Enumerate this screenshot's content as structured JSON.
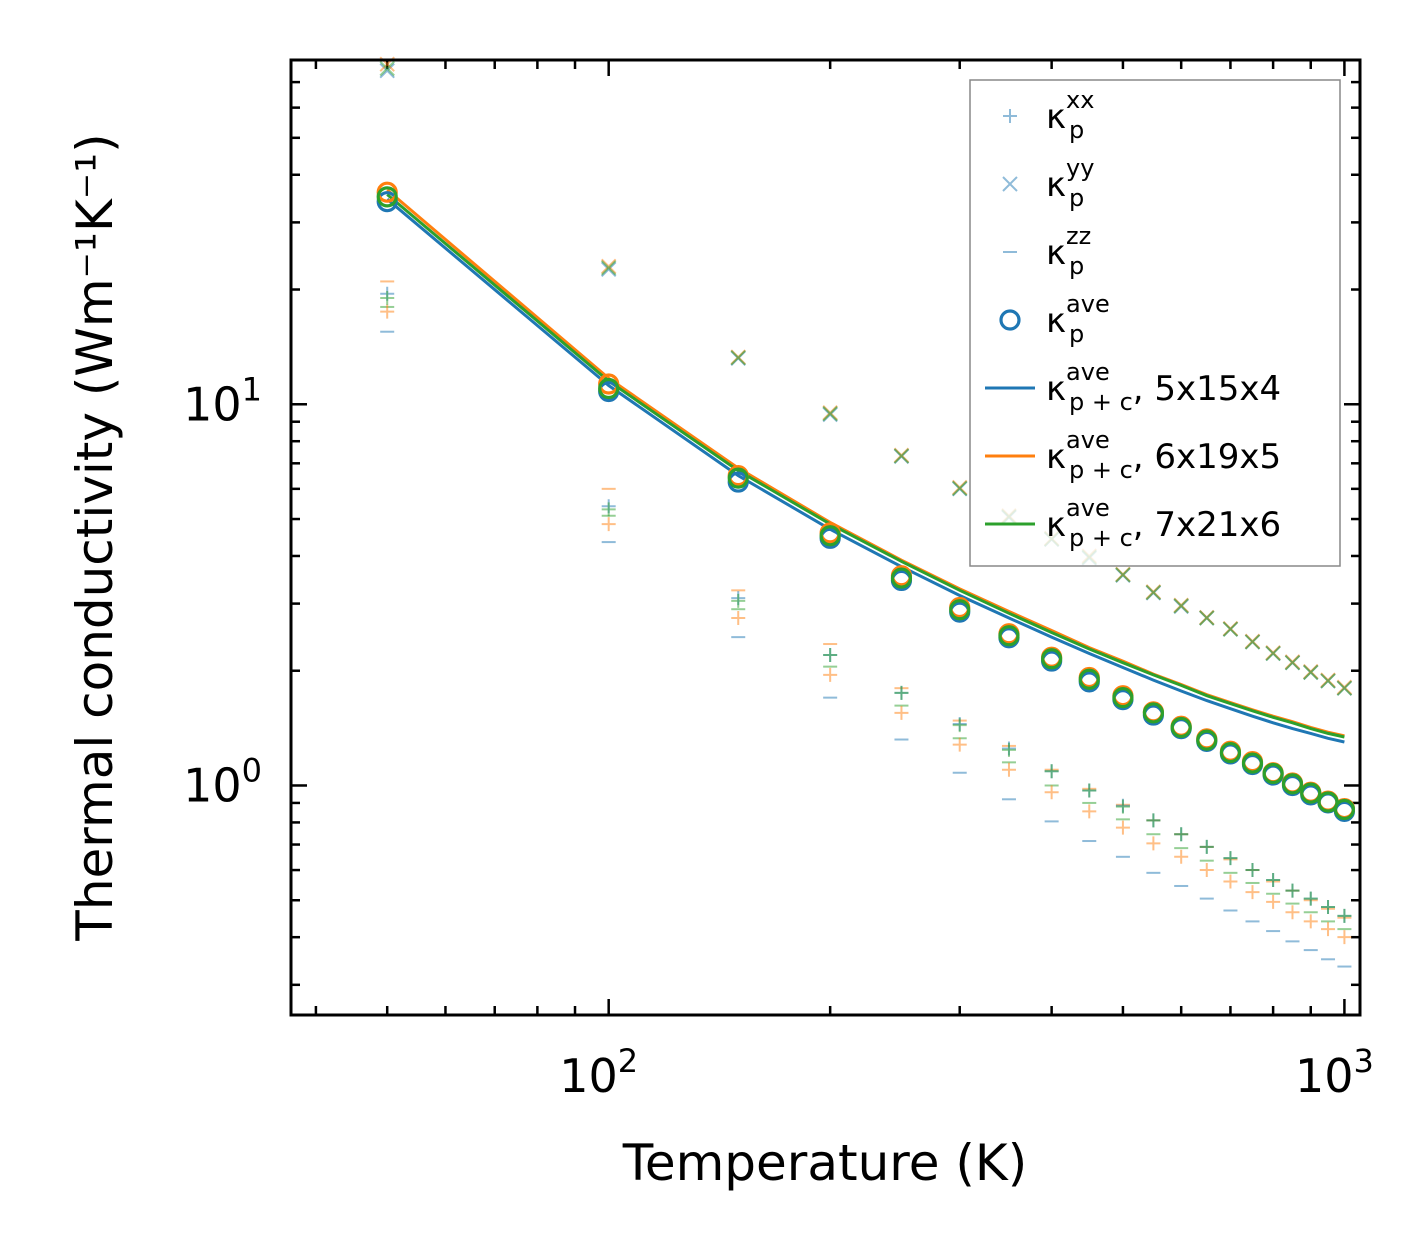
{
  "chart_data": {
    "type": "scatter",
    "xscale": "log",
    "yscale": "log",
    "xlim": [
      37,
      1050
    ],
    "ylim": [
      0.25,
      80
    ],
    "xlabel": "Temperature (K)",
    "ylabel": "Thermal conductivity (Wm⁻¹K⁻¹)",
    "x_tick_labels": [
      {
        "base": "10",
        "exp": "2",
        "value": 100
      },
      {
        "base": "10",
        "exp": "3",
        "value": 1000
      }
    ],
    "y_tick_labels": [
      {
        "base": "10",
        "exp": "0",
        "value": 1
      },
      {
        "base": "10",
        "exp": "1",
        "value": 10
      }
    ],
    "temperatures": [
      50,
      100,
      150,
      200,
      250,
      300,
      350,
      400,
      450,
      500,
      550,
      600,
      650,
      700,
      750,
      800,
      850,
      900,
      950,
      1000
    ],
    "colors": {
      "blue": "#1f77b4",
      "orange": "#ff7f0e",
      "green": "#2ca02c"
    },
    "legend": [
      {
        "marker": "plus",
        "sym": "κ",
        "sub": "p",
        "sup": "xx",
        "suffix": ""
      },
      {
        "marker": "cross",
        "sym": "κ",
        "sub": "p",
        "sup": "yy",
        "suffix": ""
      },
      {
        "marker": "dash",
        "sym": "κ",
        "sub": "p",
        "sup": "zz",
        "suffix": ""
      },
      {
        "marker": "circle",
        "sym": "κ",
        "sub": "p",
        "sup": "ave",
        "suffix": ""
      },
      {
        "marker": "line",
        "color": "blue",
        "sym": "κ",
        "sub": "p + c",
        "sup": "ave",
        "suffix": ", 5x15x4"
      },
      {
        "marker": "line",
        "color": "orange",
        "sym": "κ",
        "sub": "p + c",
        "sup": "ave",
        "suffix": ", 6x19x5"
      },
      {
        "marker": "line",
        "color": "green",
        "sym": "κ",
        "sub": "p + c",
        "sup": "ave",
        "suffix": ", 7x21x6"
      }
    ],
    "series": [
      {
        "name": "κp xx, 5x15x4",
        "marker": "plus",
        "color": "blue",
        "values": [
          19.5,
          5.4,
          3.1,
          2.2,
          1.75,
          1.45,
          1.25,
          1.09,
          0.97,
          0.885,
          0.81,
          0.745,
          0.69,
          0.645,
          0.6,
          0.565,
          0.53,
          0.505,
          0.48,
          0.455
        ]
      },
      {
        "name": "κp xx, 6x19x5",
        "marker": "plus",
        "color": "orange",
        "values": [
          17.5,
          4.85,
          2.75,
          1.95,
          1.55,
          1.28,
          1.1,
          0.96,
          0.855,
          0.775,
          0.705,
          0.65,
          0.6,
          0.56,
          0.525,
          0.495,
          0.465,
          0.44,
          0.42,
          0.4
        ]
      },
      {
        "name": "κp xx, 7x21x6",
        "marker": "plus",
        "color": "green",
        "values": [
          19.0,
          5.3,
          3.05,
          2.2,
          1.75,
          1.44,
          1.24,
          1.09,
          0.97,
          0.88,
          0.81,
          0.745,
          0.69,
          0.645,
          0.6,
          0.565,
          0.53,
          0.505,
          0.48,
          0.455
        ]
      },
      {
        "name": "κp yy, 5x15x4",
        "marker": "cross",
        "color": "blue",
        "values": [
          75,
          22.6,
          13.2,
          9.4,
          7.3,
          6.0,
          5.05,
          4.42,
          3.95,
          3.56,
          3.2,
          2.95,
          2.75,
          2.57,
          2.38,
          2.22,
          2.1,
          1.98,
          1.88,
          1.8
        ]
      },
      {
        "name": "κp yy, 6x19x5",
        "marker": "cross",
        "color": "orange",
        "values": [
          78,
          23.0,
          13.3,
          9.5,
          7.35,
          6.05,
          5.1,
          4.45,
          4.0,
          3.58,
          3.22,
          2.97,
          2.76,
          2.58,
          2.39,
          2.23,
          2.11,
          1.99,
          1.89,
          1.81
        ]
      },
      {
        "name": "κp yy, 7x21x6",
        "marker": "cross",
        "color": "green",
        "values": [
          76,
          22.8,
          13.25,
          9.45,
          7.32,
          6.02,
          5.07,
          4.43,
          3.97,
          3.57,
          3.21,
          2.96,
          2.75,
          2.57,
          2.38,
          2.22,
          2.1,
          1.98,
          1.88,
          1.8
        ]
      },
      {
        "name": "κp zz, 5x15x4",
        "marker": "dash",
        "color": "blue",
        "values": [
          15.5,
          4.35,
          2.45,
          1.7,
          1.32,
          1.08,
          0.92,
          0.805,
          0.715,
          0.65,
          0.59,
          0.545,
          0.505,
          0.47,
          0.44,
          0.415,
          0.39,
          0.37,
          0.35,
          0.335
        ]
      },
      {
        "name": "κp zz, 6x19x5",
        "marker": "dash",
        "color": "orange",
        "values": [
          21.0,
          6.0,
          3.25,
          2.35,
          1.8,
          1.48,
          1.27,
          1.1,
          0.98,
          0.89,
          0.81,
          0.745,
          0.69,
          0.64,
          0.6,
          0.56,
          0.53,
          0.5,
          0.475,
          0.45
        ]
      },
      {
        "name": "κp zz, 7x21x6",
        "marker": "dash",
        "color": "green",
        "values": [
          18.0,
          5.1,
          2.9,
          2.05,
          1.62,
          1.33,
          1.15,
          1.0,
          0.9,
          0.815,
          0.745,
          0.685,
          0.635,
          0.59,
          0.555,
          0.52,
          0.49,
          0.465,
          0.44,
          0.42
        ]
      },
      {
        "name": "κp ave, 5x15x4",
        "marker": "circle",
        "color": "blue",
        "values": [
          34.0,
          10.8,
          6.25,
          4.45,
          3.45,
          2.85,
          2.44,
          2.12,
          1.87,
          1.68,
          1.53,
          1.41,
          1.305,
          1.21,
          1.135,
          1.065,
          1.0,
          0.945,
          0.9,
          0.855
        ]
      },
      {
        "name": "κp ave, 6x19x5",
        "marker": "circle",
        "color": "orange",
        "values": [
          36.0,
          11.3,
          6.5,
          4.6,
          3.55,
          2.93,
          2.5,
          2.17,
          1.92,
          1.72,
          1.56,
          1.43,
          1.325,
          1.23,
          1.155,
          1.08,
          1.015,
          0.96,
          0.91,
          0.87
        ]
      },
      {
        "name": "κp ave, 7x21x6",
        "marker": "circle",
        "color": "green",
        "values": [
          35.0,
          11.0,
          6.4,
          4.52,
          3.5,
          2.89,
          2.47,
          2.15,
          1.9,
          1.7,
          1.55,
          1.42,
          1.315,
          1.22,
          1.145,
          1.075,
          1.01,
          0.955,
          0.905,
          0.865
        ]
      },
      {
        "name": "κp+c ave, 5x15x4",
        "marker": "line",
        "color": "blue",
        "values": [
          34.5,
          11.2,
          6.5,
          4.7,
          3.75,
          3.15,
          2.75,
          2.45,
          2.22,
          2.04,
          1.89,
          1.77,
          1.67,
          1.59,
          1.52,
          1.46,
          1.41,
          1.37,
          1.33,
          1.3
        ]
      },
      {
        "name": "κp+c ave, 6x19x5",
        "marker": "line",
        "color": "orange",
        "values": [
          36.5,
          11.7,
          6.8,
          4.9,
          3.9,
          3.28,
          2.86,
          2.55,
          2.3,
          2.12,
          1.96,
          1.84,
          1.73,
          1.65,
          1.58,
          1.52,
          1.47,
          1.42,
          1.38,
          1.35
        ]
      },
      {
        "name": "κp+c ave, 7x21x6",
        "marker": "line",
        "color": "green",
        "values": [
          35.5,
          11.5,
          6.7,
          4.85,
          3.87,
          3.25,
          2.83,
          2.52,
          2.28,
          2.1,
          1.95,
          1.83,
          1.72,
          1.64,
          1.57,
          1.51,
          1.46,
          1.41,
          1.37,
          1.34
        ]
      }
    ]
  }
}
